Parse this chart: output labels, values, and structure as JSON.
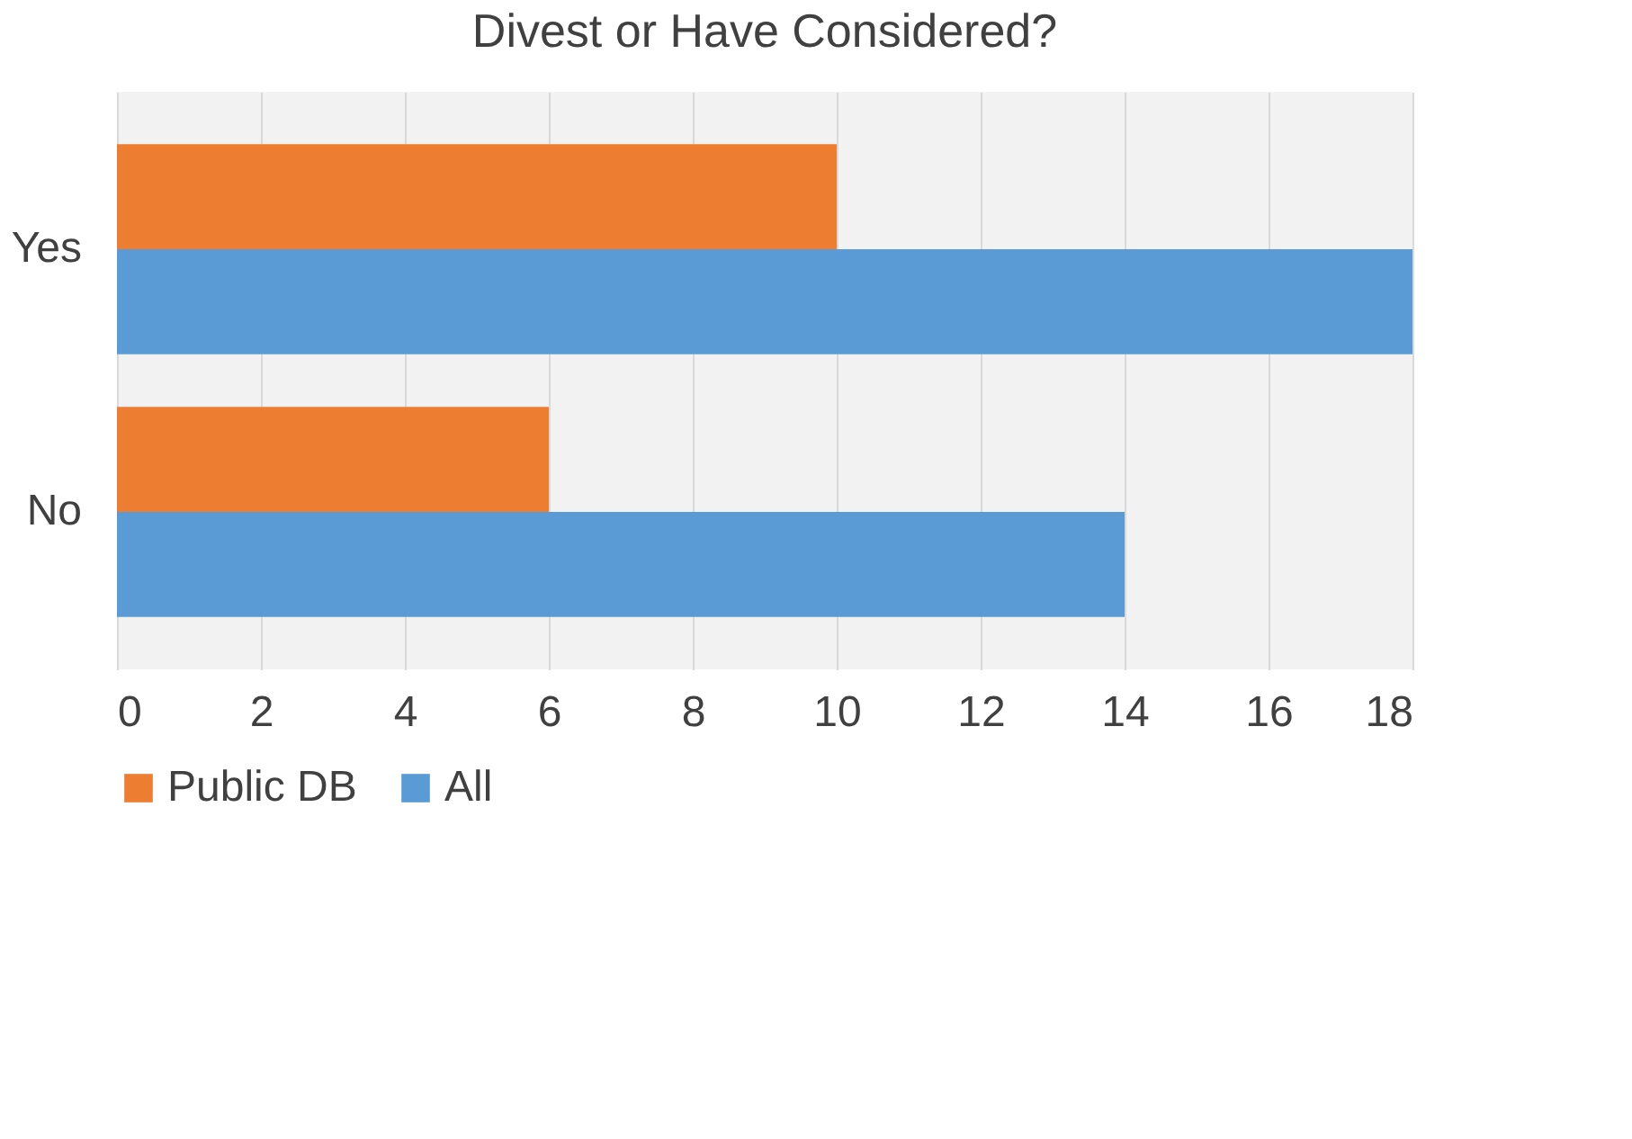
{
  "chart_data": {
    "type": "bar",
    "orientation": "horizontal",
    "title": "Divest or Have Considered?",
    "categories": [
      "Yes",
      "No"
    ],
    "series": [
      {
        "name": "Public DB",
        "color": "#ed7d31",
        "values": [
          10,
          6
        ]
      },
      {
        "name": "All",
        "color": "#5b9bd5",
        "values": [
          18,
          14
        ]
      }
    ],
    "xlim": [
      0,
      18
    ],
    "xticks": [
      0,
      2,
      4,
      6,
      8,
      10,
      12,
      14,
      16,
      18
    ],
    "grid": "x",
    "legend": "bottom"
  }
}
